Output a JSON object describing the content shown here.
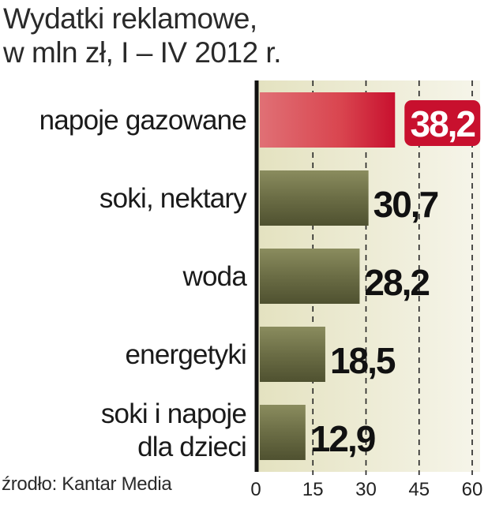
{
  "title_lines": [
    "Wydatki reklamowe,",
    "w mln zł, I – IV 2012 r."
  ],
  "source": "źrodło: Kantar Media",
  "colors": {
    "panel": "#ecebd4",
    "bar_default": "#6b6d45",
    "bar_highlight": "#d63c48",
    "label_highlight_bg": "#c8102e",
    "axis": "#111111",
    "grid": "#222222"
  },
  "chart_data": {
    "type": "bar",
    "orientation": "horizontal",
    "categories": [
      "napoje gazowane",
      "soki, nektary",
      "woda",
      "energetyki ",
      "soki i napoje\ndla dzieci"
    ],
    "values": [
      38.2,
      30.7,
      28.2,
      18.5,
      12.9
    ],
    "value_labels": [
      "38,2",
      "30,7",
      "28,2",
      "18,5",
      "12,9"
    ],
    "highlight_index": 0,
    "xlim": [
      0,
      60
    ],
    "xticks": [
      0,
      15,
      30,
      45,
      60
    ],
    "grid": true,
    "unit": "mln zł"
  }
}
